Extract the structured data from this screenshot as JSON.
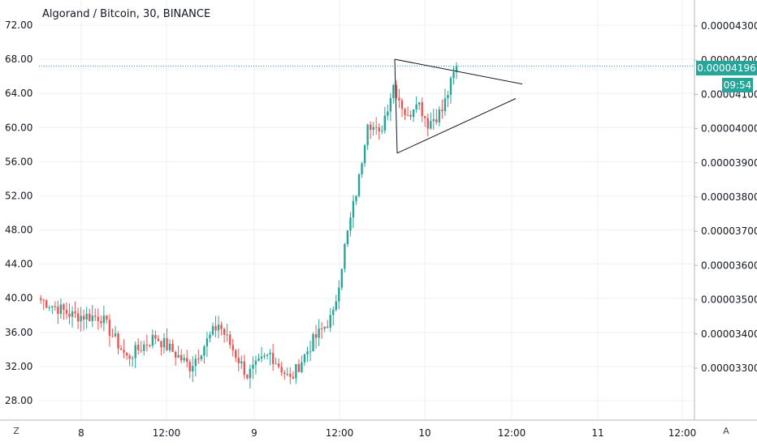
{
  "chart_data": {
    "type": "candlestick",
    "title": "Algorand / Bitcoin, 30, BINANCE",
    "colors": {
      "up": "#26a69a",
      "down": "#ef5350",
      "grid": "#eef0f3",
      "axis_text": "#131722",
      "trendline": "#131722",
      "price_line": "#26a69a"
    },
    "left_axis": {
      "ticks": [
        "72.00",
        "68.00",
        "64.00",
        "60.00",
        "56.00",
        "52.00",
        "48.00",
        "44.00",
        "40.00",
        "36.00",
        "32.00",
        "28.00"
      ],
      "range": [
        26,
        74
      ]
    },
    "right_axis": {
      "ticks": [
        "0.00004300",
        "0.00004200",
        "0.00004100",
        "0.00004000",
        "0.00003900",
        "0.00003800",
        "0.00003700",
        "0.00003600",
        "0.00003500",
        "0.00003400",
        "0.00003300"
      ]
    },
    "x_axis": {
      "ticks": [
        "8",
        "12:00",
        "9",
        "12:00",
        "10",
        "12:00",
        "11",
        "12:00"
      ]
    },
    "last_price": "0.00004196",
    "countdown": "09:54",
    "anchors": {
      "start": 40.0,
      "a": 38.0,
      "b": 37.8,
      "c": 33.0,
      "d": 35.5,
      "e": 32.0,
      "f": 37.0,
      "g": 31.0,
      "h": 33.5,
      "i": 30.4,
      "j": 35.0,
      "k": 38.0,
      "l": 46.0,
      "m": 54.0,
      "n": 61.0,
      "o": 59.0,
      "p": 65.0,
      "q": 61.0,
      "r": 63.5,
      "s": 60.5,
      "t": 62.0,
      "u": 67.2
    },
    "pattern": "symmetrical triangle",
    "scale_buttons": {
      "left": "Z",
      "right": "A"
    }
  }
}
